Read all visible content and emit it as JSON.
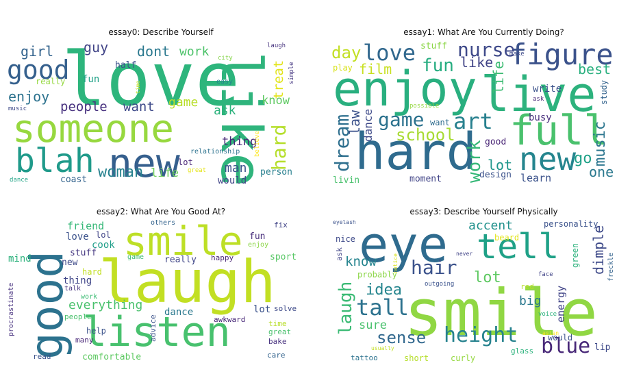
{
  "panels": [
    {
      "title": "essay0: Describe Yourself",
      "words": [
        {
          "t": "love",
          "c": "#2db57c"
        },
        {
          "t": "someone",
          "c": "#97d83f"
        },
        {
          "t": "like",
          "c": "#2fb47c"
        },
        {
          "t": "new",
          "c": "#355f8d"
        },
        {
          "t": "blah",
          "c": "#1f9a8a"
        },
        {
          "t": "good",
          "c": "#35608d"
        },
        {
          "t": "hard",
          "c": "#b5de2b"
        },
        {
          "t": "woman",
          "c": "#26818e"
        },
        {
          "t": "enjoy",
          "c": "#2c728e"
        },
        {
          "t": "people",
          "c": "#46307e"
        },
        {
          "t": "want",
          "c": "#3e4a89"
        },
        {
          "t": "girl",
          "c": "#33638d"
        },
        {
          "t": "guy",
          "c": "#414487"
        },
        {
          "t": "dont",
          "c": "#2a788e"
        },
        {
          "t": "work",
          "c": "#4ec36b"
        },
        {
          "t": "game",
          "c": "#b8de29"
        },
        {
          "t": "ask",
          "c": "#2db27d"
        },
        {
          "t": "thing",
          "c": "#482878"
        },
        {
          "t": "man",
          "c": "#3b528b"
        },
        {
          "t": "life",
          "c": "#6ccd5a"
        },
        {
          "t": "treat",
          "c": "#e2e418"
        },
        {
          "t": "know",
          "c": "#5ec962"
        },
        {
          "t": "coast",
          "c": "#33638d"
        },
        {
          "t": "would",
          "c": "#414487"
        },
        {
          "t": "person",
          "c": "#277f8e"
        },
        {
          "t": "lot",
          "c": "#482475"
        },
        {
          "t": "fun",
          "c": "#1fa187"
        },
        {
          "t": "half",
          "c": "#3b528b"
        },
        {
          "t": "really",
          "c": "#95d840"
        },
        {
          "t": "relationship",
          "c": "#2c728e"
        },
        {
          "t": "great",
          "c": "#e5e419"
        },
        {
          "t": "easy",
          "c": "#25848e"
        },
        {
          "t": "city",
          "c": "#86d549"
        },
        {
          "t": "laugh",
          "c": "#46337e"
        },
        {
          "t": "simple",
          "c": "#453781"
        },
        {
          "t": "time",
          "c": "#c0df25"
        },
        {
          "t": "believe",
          "c": "#fde725"
        },
        {
          "t": "music",
          "c": "#3e4a89"
        },
        {
          "t": "dance",
          "c": "#20a386"
        }
      ]
    },
    {
      "title": "essay1: What Are You Currently Doing?",
      "words": [
        {
          "t": "enjoy",
          "c": "#29af7f"
        },
        {
          "t": "live",
          "c": "#2db27d"
        },
        {
          "t": "hard",
          "c": "#2f6b8e"
        },
        {
          "t": "full",
          "c": "#4ac16d"
        },
        {
          "t": "figure",
          "c": "#3b528b"
        },
        {
          "t": "love",
          "c": "#31688e"
        },
        {
          "t": "nurse",
          "c": "#3e4989"
        },
        {
          "t": "new",
          "c": "#25858e"
        },
        {
          "t": "day",
          "c": "#c2df23"
        },
        {
          "t": "film",
          "c": "#c8e020"
        },
        {
          "t": "fun",
          "c": "#27ad81"
        },
        {
          "t": "game",
          "c": "#2c728e"
        },
        {
          "t": "art",
          "c": "#27808e"
        },
        {
          "t": "school",
          "c": "#a8db34"
        },
        {
          "t": "dream",
          "c": "#2e6f8e"
        },
        {
          "t": "work",
          "c": "#37b878"
        },
        {
          "t": "music",
          "c": "#2b758e"
        },
        {
          "t": "best",
          "c": "#2ab07f"
        },
        {
          "t": "life",
          "c": "#3ebc74"
        },
        {
          "t": "like",
          "c": "#414487"
        },
        {
          "t": "go",
          "c": "#1fa188"
        },
        {
          "t": "one",
          "c": "#2a788e"
        },
        {
          "t": "lot",
          "c": "#1f968b"
        },
        {
          "t": "law",
          "c": "#3b528b"
        },
        {
          "t": "dance",
          "c": "#3e4a89"
        },
        {
          "t": "learn",
          "c": "#3b528b"
        },
        {
          "t": "busy",
          "c": "#472d7b"
        },
        {
          "t": "write",
          "c": "#3b528b"
        },
        {
          "t": "good",
          "c": "#482475"
        },
        {
          "t": "want",
          "c": "#2f6c8e"
        },
        {
          "t": "study",
          "c": "#33638d"
        },
        {
          "t": "design",
          "c": "#3b528b"
        },
        {
          "t": "moment",
          "c": "#414487"
        },
        {
          "t": "livin",
          "c": "#4ac16d"
        },
        {
          "t": "stuff",
          "c": "#8bd646"
        },
        {
          "t": "play",
          "c": "#d8e219"
        },
        {
          "t": "make",
          "c": "#3e4a89"
        },
        {
          "t": "possible",
          "c": "#95d840"
        },
        {
          "t": "ask",
          "c": "#482878"
        }
      ]
    },
    {
      "title": "essay2: What Are You Good At?",
      "words": [
        {
          "t": "laugh",
          "c": "#c2df23"
        },
        {
          "t": "good",
          "c": "#2c728e"
        },
        {
          "t": "smile",
          "c": "#bddf26"
        },
        {
          "t": "listen",
          "c": "#48c16e"
        },
        {
          "t": "everything",
          "c": "#4ac16d"
        },
        {
          "t": "friend",
          "c": "#37b878"
        },
        {
          "t": "love",
          "c": "#3b528b"
        },
        {
          "t": "cook",
          "c": "#1f9e89"
        },
        {
          "t": "new",
          "c": "#3e4a89"
        },
        {
          "t": "stuff",
          "c": "#453781"
        },
        {
          "t": "thing",
          "c": "#404688"
        },
        {
          "t": "mind",
          "c": "#2db27d"
        },
        {
          "t": "talk",
          "c": "#46327e"
        },
        {
          "t": "lol",
          "c": "#414487"
        },
        {
          "t": "hard",
          "c": "#c2df23"
        },
        {
          "t": "work",
          "c": "#3dbc74"
        },
        {
          "t": "people",
          "c": "#4ac16d"
        },
        {
          "t": "help",
          "c": "#3b528b"
        },
        {
          "t": "many",
          "c": "#482677"
        },
        {
          "t": "read",
          "c": "#3b528b"
        },
        {
          "t": "comfortable",
          "c": "#5ec962"
        },
        {
          "t": "advice",
          "c": "#3b528b"
        },
        {
          "t": "dance",
          "c": "#2a788e"
        },
        {
          "t": "awkward",
          "c": "#482878"
        },
        {
          "t": "lot",
          "c": "#3b528b"
        },
        {
          "t": "solve",
          "c": "#3e4a89"
        },
        {
          "t": "time",
          "c": "#b8de29"
        },
        {
          "t": "great",
          "c": "#4ac16d"
        },
        {
          "t": "bake",
          "c": "#46307e"
        },
        {
          "t": "care",
          "c": "#33638d"
        },
        {
          "t": "fun",
          "c": "#472d7b"
        },
        {
          "t": "enjoy",
          "c": "#8bd646"
        },
        {
          "t": "sport",
          "c": "#58c765"
        },
        {
          "t": "happy",
          "c": "#482575"
        },
        {
          "t": "really",
          "c": "#404688"
        },
        {
          "t": "game",
          "c": "#3dbc74"
        },
        {
          "t": "others",
          "c": "#33638d"
        },
        {
          "t": "fix",
          "c": "#414487"
        },
        {
          "t": "procrastinate",
          "c": "#46307e"
        }
      ]
    },
    {
      "title": "essay3: Describe Yourself Physically",
      "words": [
        {
          "t": "smile",
          "c": "#90d743"
        },
        {
          "t": "eye",
          "c": "#2f6b8e"
        },
        {
          "t": "tell",
          "c": "#1fa187"
        },
        {
          "t": "hair",
          "c": "#3b528b"
        },
        {
          "t": "height",
          "c": "#26828e"
        },
        {
          "t": "laugh",
          "c": "#3bbb75"
        },
        {
          "t": "tall",
          "c": "#2c728e"
        },
        {
          "t": "sense",
          "c": "#31688e"
        },
        {
          "t": "blue",
          "c": "#482878"
        },
        {
          "t": "lot",
          "c": "#5ec962"
        },
        {
          "t": "idea",
          "c": "#25858e"
        },
        {
          "t": "know",
          "c": "#25848e"
        },
        {
          "t": "sure",
          "c": "#4ac16d"
        },
        {
          "t": "accent",
          "c": "#21918c"
        },
        {
          "t": "dimple",
          "c": "#3e4a89"
        },
        {
          "t": "energy",
          "c": "#414487"
        },
        {
          "t": "big",
          "c": "#2a788e"
        },
        {
          "t": "personality",
          "c": "#3b528b"
        },
        {
          "t": "green",
          "c": "#2db27d"
        },
        {
          "t": "beard",
          "c": "#e2e418"
        },
        {
          "t": "nice",
          "c": "#3e4a89"
        },
        {
          "t": "probably",
          "c": "#8bd646"
        },
        {
          "t": "ask",
          "c": "#414487"
        },
        {
          "t": "would",
          "c": "#3b528b"
        },
        {
          "t": "lip",
          "c": "#3e4a89"
        },
        {
          "t": "glass",
          "c": "#2db27d"
        },
        {
          "t": "curly",
          "c": "#95d840"
        },
        {
          "t": "short",
          "c": "#b5de2b"
        },
        {
          "t": "tattoo",
          "c": "#2c728e"
        },
        {
          "t": "red",
          "c": "#b5de2b"
        },
        {
          "t": "face",
          "c": "#414487"
        },
        {
          "t": "voice",
          "c": "#2db27d"
        },
        {
          "t": "outgoing",
          "c": "#3b528b"
        },
        {
          "t": "freckle",
          "c": "#33638d"
        },
        {
          "t": "never",
          "c": "#414487"
        },
        {
          "t": "notice",
          "c": "#d8e219"
        },
        {
          "t": "eyelash",
          "c": "#3b528b"
        },
        {
          "t": "usually",
          "c": "#c2df23"
        },
        {
          "t": "asian",
          "c": "#fde725"
        }
      ]
    }
  ]
}
